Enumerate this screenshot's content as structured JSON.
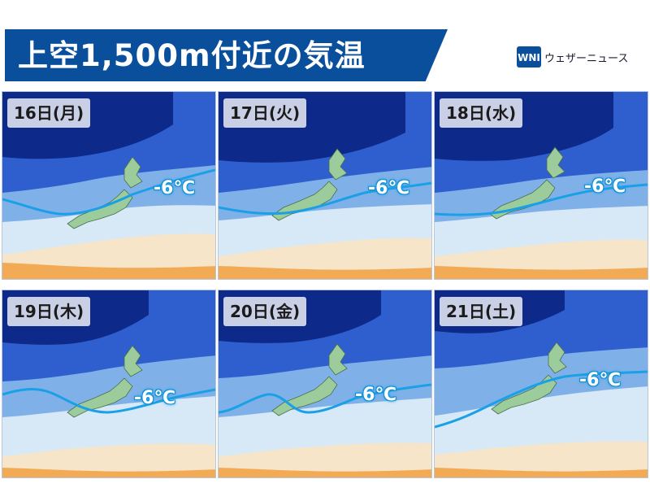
{
  "header": {
    "title": "上空1,500m付近の気温",
    "brand_name": "ウェザーニュース",
    "brand_logo_icon": "wni-logo-icon",
    "brand_color": "#0a4f9c"
  },
  "panels": [
    {
      "day": "16日(月)",
      "isotherm_label": "-6℃"
    },
    {
      "day": "17日(火)",
      "isotherm_label": "-6℃"
    },
    {
      "day": "18日(水)",
      "isotherm_label": "-6℃"
    },
    {
      "day": "19日(木)",
      "isotherm_label": "-6℃"
    },
    {
      "day": "20日(金)",
      "isotherm_label": "-6℃"
    },
    {
      "day": "21日(土)",
      "isotherm_label": "-6℃"
    }
  ],
  "colors": {
    "isotherm_line": "#1aa0e6",
    "japan_land": "#9ccc9c",
    "very_cold": "#0d2a8a",
    "cold": "#2f5fcf",
    "cool": "#7fb1e8",
    "mild": "#d7e8f6",
    "warm": "#f6e5c8",
    "hot": "#f2a040"
  }
}
